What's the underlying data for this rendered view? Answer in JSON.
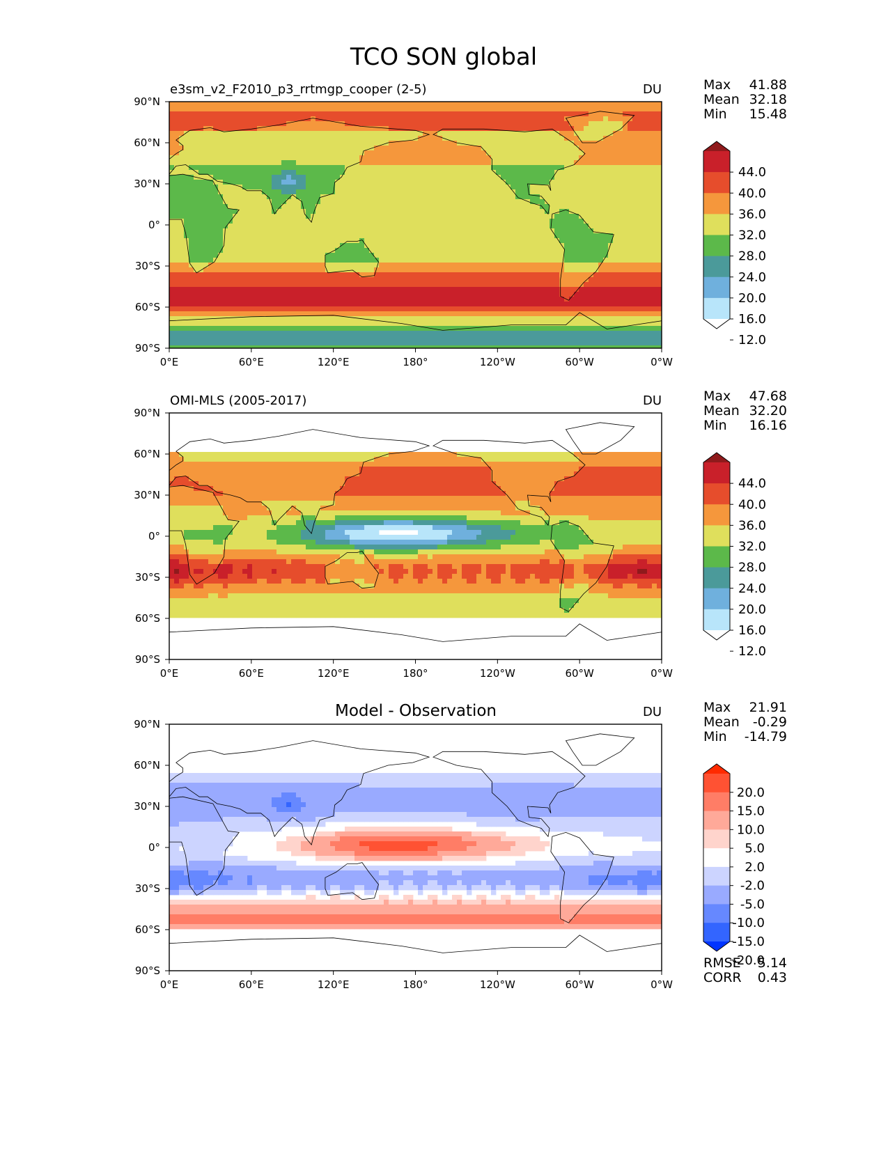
{
  "figure_title": "TCO SON global",
  "colors": {
    "seq": [
      "#ffffff",
      "#b8e5fa",
      "#6fb0dd",
      "#4b9a9a",
      "#5cb94a",
      "#dfdf5c",
      "#f5973c",
      "#e64d2c",
      "#c9202a",
      "#8f1a1c"
    ],
    "div": [
      "#0034ff",
      "#3365ff",
      "#6688ff",
      "#99aaff",
      "#ccd4ff",
      "#ffffff",
      "#ffd4cc",
      "#ffa999",
      "#ff7d66",
      "#ff5233",
      "#ff2a00"
    ]
  },
  "chart_data": [
    {
      "type": "heatmap",
      "title": "e3sm_v2_F2010_p3_rrtmgp_cooper (2-5)",
      "units": "DU",
      "xticklabels": [
        "0°E",
        "60°E",
        "120°E",
        "180°",
        "120°W",
        "60°W",
        "0°W"
      ],
      "yticklabels": [
        "90°N",
        "60°N",
        "30°N",
        "0°",
        "30°S",
        "60°S",
        "90°S"
      ],
      "xlim": [
        0,
        360
      ],
      "ylim": [
        -90,
        90
      ],
      "stats": {
        "max_label": "Max",
        "max": "41.88",
        "mean_label": "Mean",
        "mean": "32.18",
        "min_label": "Min",
        "min": "15.48"
      },
      "colorbar": {
        "labels": [
          "44.0",
          "40.0",
          "36.0",
          "32.0",
          "28.0",
          "24.0",
          "20.0",
          "16.0",
          "12.0"
        ],
        "extend": "both"
      }
    },
    {
      "type": "heatmap",
      "title": "OMI-MLS (2005-2017)",
      "units": "DU",
      "xticklabels": [
        "0°E",
        "60°E",
        "120°E",
        "180°",
        "120°W",
        "60°W",
        "0°W"
      ],
      "yticklabels": [
        "90°N",
        "60°N",
        "30°N",
        "0°",
        "30°S",
        "60°S",
        "90°S"
      ],
      "xlim": [
        0,
        360
      ],
      "ylim": [
        -90,
        90
      ],
      "data_lat_range": [
        -60,
        60
      ],
      "stats": {
        "max_label": "Max",
        "max": "47.68",
        "mean_label": "Mean",
        "mean": "32.20",
        "min_label": "Min",
        "min": "16.16"
      },
      "colorbar": {
        "labels": [
          "44.0",
          "40.0",
          "36.0",
          "32.0",
          "28.0",
          "24.0",
          "20.0",
          "16.0",
          "12.0"
        ],
        "extend": "both"
      }
    },
    {
      "type": "heatmap",
      "title": "Model - Observation",
      "units": "DU",
      "xticklabels": [
        "0°E",
        "60°E",
        "120°E",
        "180°",
        "120°W",
        "60°W",
        "0°W"
      ],
      "yticklabels": [
        "90°N",
        "60°N",
        "30°N",
        "0°",
        "30°S",
        "60°S",
        "90°S"
      ],
      "xlim": [
        0,
        360
      ],
      "ylim": [
        -90,
        90
      ],
      "data_lat_range": [
        -60,
        60
      ],
      "stats": {
        "max_label": "Max",
        "max": "21.91",
        "mean_label": "Mean",
        "mean": "-0.29",
        "min_label": "Min",
        "min": "-14.79"
      },
      "colorbar": {
        "labels": [
          "20.0",
          "15.0",
          "10.0",
          "5.0",
          "2.0",
          "-2.0",
          "-5.0",
          "-10.0",
          "-15.0",
          "-20.0"
        ],
        "extend": "both"
      },
      "metrics": {
        "rmse_label": "RMSE",
        "rmse": "5.14",
        "corr_label": "CORR",
        "corr": "0.43"
      }
    }
  ]
}
